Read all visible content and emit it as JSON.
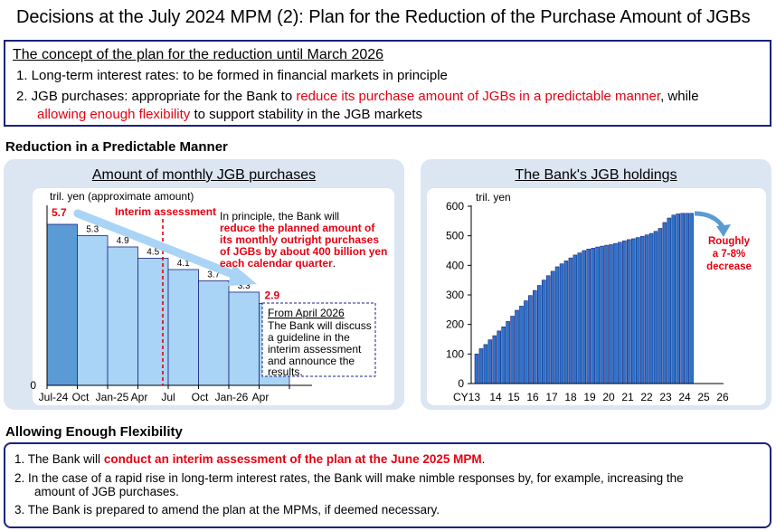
{
  "title": "Decisions at the July 2024 MPM (2): Plan for the Reduction of the Purchase Amount of JGBs",
  "concept": {
    "heading": "The concept of the plan for the reduction until March 2026",
    "item1": "1.  Long-term interest rates: to be formed in financial markets in principle",
    "item2_a": "2.  JGB purchases: appropriate for the Bank to ",
    "item2_b": "reduce its purchase amount of JGBs in a predictable manner",
    "item2_c": ", while",
    "item2_d": "allowing enough flexibility",
    "item2_e": " to support stability in the JGB markets"
  },
  "section1": "Reduction in a Predictable Manner",
  "section2": "Allowing Enough Flexibility",
  "left_panel": {
    "title": "Amount of monthly JGB purchases",
    "unit": "tril. yen (approximate amount)",
    "interim": "Interim assessment",
    "note_a": "In principle, the Bank will",
    "note_b": "reduce the planned amount of",
    "note_c": "its monthly outright purchases",
    "note_d": "of JGBs by about 400 billion yen",
    "note_e": "each calendar quarter",
    "note_f": ".",
    "april_title": "From April 2026",
    "april_1": "The Bank will discuss",
    "april_2": "a guideline in the",
    "april_3": "interim assessment",
    "april_4": "and announce the",
    "april_5": "results."
  },
  "right_panel": {
    "title": "The Bank's JGB holdings",
    "unit": "tril. yen",
    "annot_1": "Roughly",
    "annot_2": "a 7-8%",
    "annot_3": "decrease"
  },
  "flex": {
    "item1_a": "1.  The Bank will ",
    "item1_b": "conduct an interim assessment of the plan at the June 2025 MPM",
    "item1_c": ".",
    "item2_a": "2.  In the case of a rapid rise in long-term interest rates, the Bank will make nimble responses by, for example, increasing the",
    "item2_b": "amount of JGB purchases.",
    "item3": "3.  The Bank is prepared to amend the plan at the MPMs, if deemed necessary."
  },
  "colors": {
    "navy": "#1a237e",
    "red": "#e60012",
    "bar_light": "#a9d4f5",
    "bar_dark": "#5b9bd5",
    "bar_blue": "#2e74c9",
    "panel_bg": "#dce6f2"
  },
  "chart_data": [
    {
      "type": "bar",
      "title": "Amount of monthly JGB purchases",
      "ylabel": "tril. yen (approximate amount)",
      "x_tick_labels": [
        "Jul-24",
        "Oct",
        "Jan-25",
        "Apr",
        "Jul",
        "Oct",
        "Jan-26",
        "Apr"
      ],
      "y_tick_labels": [
        "0"
      ],
      "ylim": [
        0,
        6
      ],
      "series": [
        {
          "values": [
            5.7,
            5.3,
            4.9,
            4.5,
            4.1,
            3.7,
            3.3,
            2.9
          ]
        }
      ],
      "data_labels": [
        "5.7",
        "5.3",
        "4.9",
        "4.5",
        "4.1",
        "3.7",
        "3.3",
        "2.9"
      ],
      "grid": false
    },
    {
      "type": "bar",
      "title": "The Bank's JGB holdings",
      "ylabel": "tril. yen",
      "x_tick_labels": [
        "CY13",
        "14",
        "15",
        "16",
        "17",
        "18",
        "19",
        "20",
        "21",
        "22",
        "23",
        "24",
        "25",
        "26"
      ],
      "y_tick_labels": [
        "0",
        "100",
        "200",
        "300",
        "400",
        "500",
        "600"
      ],
      "ylim": [
        0,
        600
      ],
      "series": [
        {
          "values": [
            100,
            118,
            132,
            148,
            162,
            178,
            192,
            210,
            228,
            248,
            262,
            280,
            298,
            315,
            332,
            350,
            365,
            380,
            395,
            405,
            415,
            425,
            435,
            442,
            450,
            455,
            458,
            462,
            465,
            468,
            470,
            474,
            478,
            483,
            487,
            490,
            494,
            498,
            503,
            508,
            515,
            525,
            545,
            560,
            570,
            574,
            576,
            576,
            576
          ]
        }
      ],
      "grid": false
    }
  ]
}
